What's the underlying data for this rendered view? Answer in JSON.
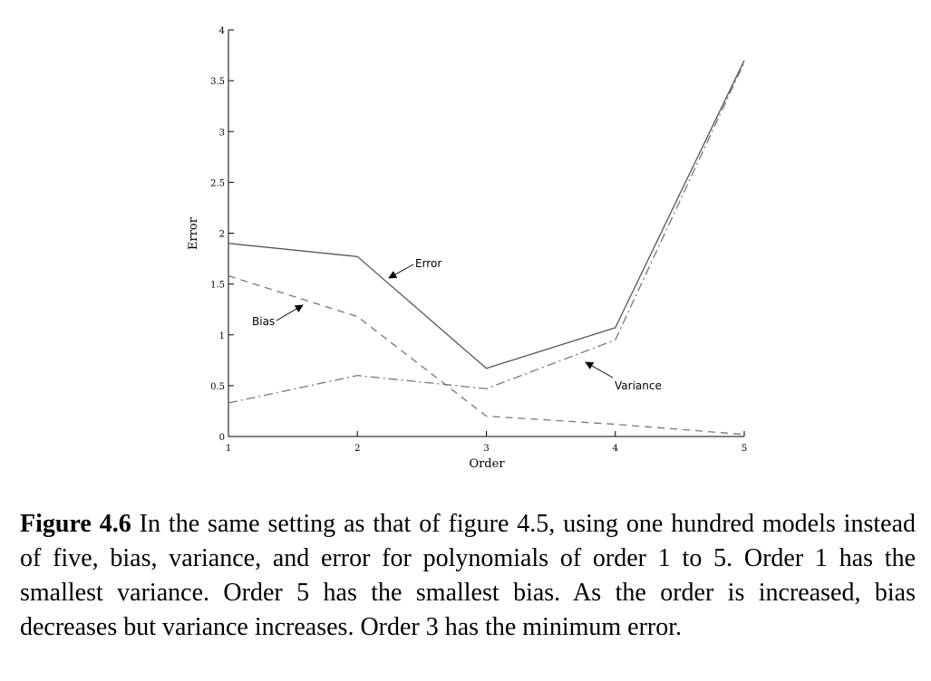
{
  "chart_data": {
    "type": "line",
    "title": "",
    "xlabel": "Order",
    "ylabel": "Error",
    "x": [
      1,
      2,
      3,
      4,
      5
    ],
    "xticks": [
      "1",
      "2",
      "3",
      "4",
      "5"
    ],
    "yticks": [
      "0",
      "0.5",
      "1",
      "1.5",
      "2",
      "2.5",
      "3",
      "3.5",
      "4"
    ],
    "xlim": [
      1,
      5
    ],
    "ylim": [
      0,
      4
    ],
    "grid": false,
    "series": [
      {
        "name": "Error",
        "style": "solid",
        "color": "#555555",
        "values": [
          1.9,
          1.77,
          0.67,
          1.07,
          3.7
        ]
      },
      {
        "name": "Bias",
        "style": "dashed",
        "color": "#777777",
        "values": [
          1.58,
          1.18,
          0.2,
          0.12,
          0.02
        ]
      },
      {
        "name": "Variance",
        "style": "dashdot",
        "color": "#777777",
        "values": [
          0.33,
          0.6,
          0.47,
          0.95,
          3.68
        ]
      }
    ],
    "annotations": [
      {
        "text": "Error",
        "series": "Error"
      },
      {
        "text": "Bias",
        "series": "Bias"
      },
      {
        "text": "Variance",
        "series": "Variance"
      }
    ]
  },
  "caption": {
    "label": "Figure 4.6",
    "text": " In the same setting as that of figure 4.5, using one hundred models instead of five, bias, variance, and error for polynomials of order 1 to 5. Order 1 has the smallest variance. Order 5 has the smallest bias. As the order is increased, bias decreases but variance increases. Order 3 has the minimum error."
  }
}
